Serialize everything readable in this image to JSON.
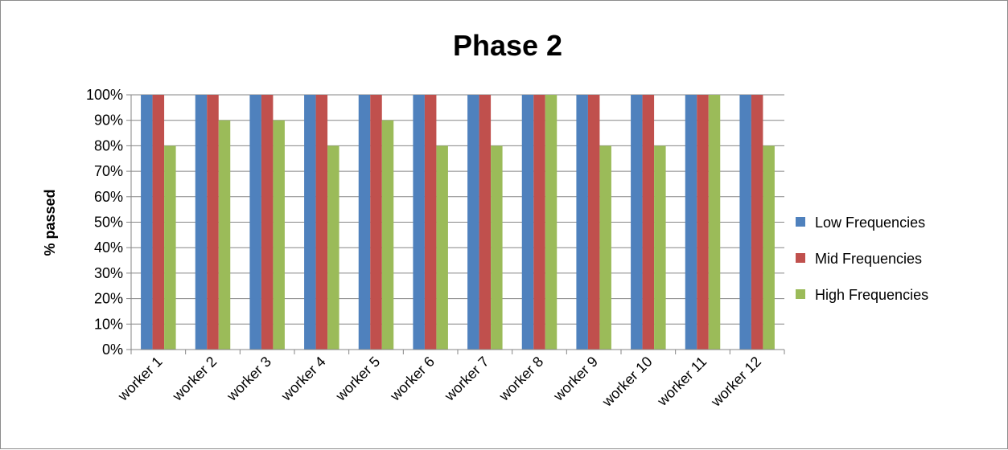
{
  "chart_data": {
    "type": "bar",
    "title": "Phase 2",
    "xlabel": "",
    "ylabel": "% passed",
    "ylim": [
      0,
      100
    ],
    "y_ticks": [
      "0%",
      "10%",
      "20%",
      "30%",
      "40%",
      "50%",
      "60%",
      "70%",
      "80%",
      "90%",
      "100%"
    ],
    "grid": true,
    "legend_position": "right",
    "categories": [
      "worker 1",
      "worker 2",
      "worker 3",
      "worker 4",
      "worker 5",
      "worker 6",
      "worker 7",
      "worker 8",
      "worker 9",
      "worker 10",
      "worker 11",
      "worker 12"
    ],
    "series": [
      {
        "name": "Low Frequencies",
        "color": "#4f81bd",
        "values": [
          100,
          100,
          100,
          100,
          100,
          100,
          100,
          100,
          100,
          100,
          100,
          100
        ]
      },
      {
        "name": "Mid Frequencies",
        "color": "#c0504d",
        "values": [
          100,
          100,
          100,
          100,
          100,
          100,
          100,
          100,
          100,
          100,
          100,
          100
        ]
      },
      {
        "name": "High Frequencies",
        "color": "#9bbb59",
        "values": [
          80,
          90,
          90,
          80,
          90,
          80,
          80,
          100,
          80,
          80,
          100,
          80
        ]
      }
    ]
  }
}
